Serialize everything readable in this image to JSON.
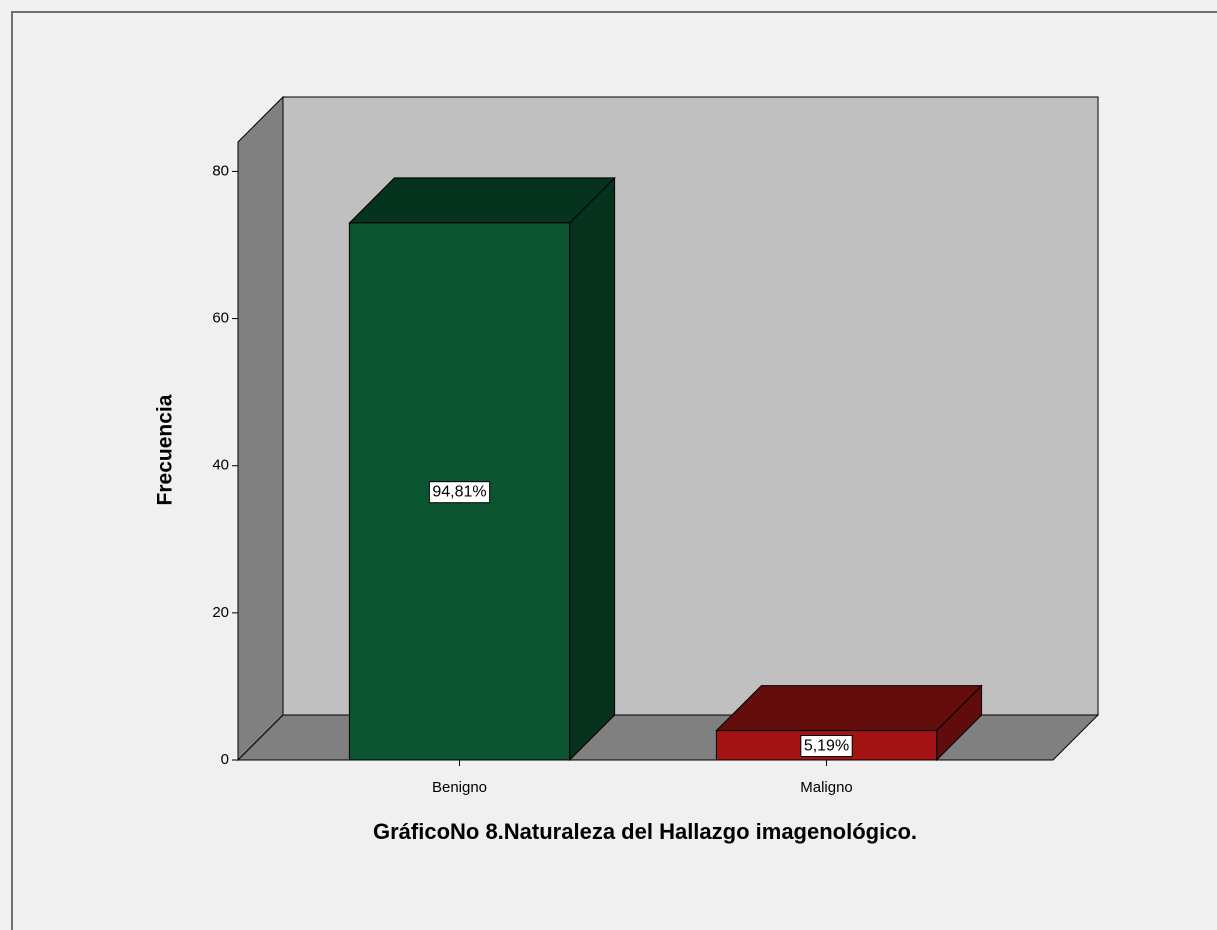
{
  "chart_data": {
    "type": "bar3d",
    "title": "GráficoNo 8.Naturaleza del Hallazgo imagenológico.",
    "ylabel": "Frecuencia",
    "categories": [
      "Benigno",
      "Maligno"
    ],
    "values": [
      73,
      4
    ],
    "percent_labels": [
      "94,81%",
      "5,19%"
    ],
    "colors": [
      "#0a5530",
      "#a51414"
    ],
    "ylim": [
      0,
      84
    ],
    "yticks": [
      0,
      20,
      40,
      60,
      80
    ],
    "grid": false
  }
}
